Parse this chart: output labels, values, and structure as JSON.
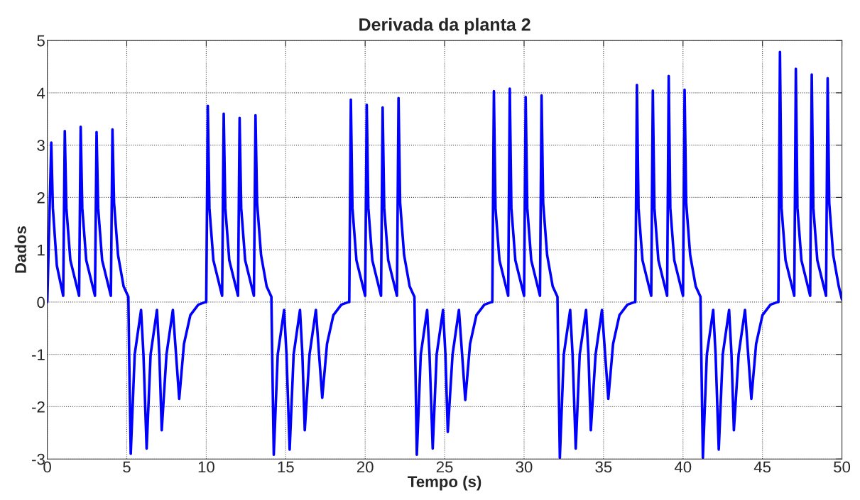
{
  "chart_data": {
    "type": "line",
    "title": "Derivada da planta 2",
    "xlabel": "Tempo (s)",
    "ylabel": "Dados",
    "x": [
      0,
      0.25,
      0.35,
      0.6,
      1.0,
      1.1,
      1.2,
      1.45,
      2.0,
      2.1,
      2.2,
      2.45,
      3.0,
      3.1,
      3.2,
      3.45,
      4.0,
      4.1,
      4.2,
      4.45,
      4.8,
      5.1,
      5.15,
      5.25,
      5.5,
      5.9,
      6.05,
      6.25,
      6.5,
      6.9,
      7.05,
      7.2,
      7.5,
      7.9,
      8.1,
      8.3,
      8.6,
      9.0,
      9.5,
      9.95,
      10,
      10.1,
      10.2,
      10.45,
      11,
      11.1,
      11.2,
      11.45,
      12,
      12.1,
      12.2,
      12.45,
      13,
      13.1,
      13.2,
      13.45,
      13.8,
      14.1,
      14.15,
      14.25,
      14.5,
      14.9,
      15.05,
      15.25,
      15.5,
      15.9,
      16.05,
      16.2,
      16.5,
      16.9,
      17.1,
      17.3,
      17.6,
      18.0,
      18.5,
      18.95,
      19,
      19.1,
      19.2,
      19.45,
      20,
      20.1,
      20.2,
      20.45,
      21,
      21.1,
      21.2,
      21.45,
      22,
      22.1,
      22.2,
      22.45,
      22.8,
      23.1,
      23.15,
      23.25,
      23.5,
      23.9,
      24.05,
      24.25,
      24.5,
      24.9,
      25.05,
      25.2,
      25.5,
      25.9,
      26.1,
      26.3,
      26.6,
      27.0,
      27.5,
      27.95,
      28,
      28.1,
      28.2,
      28.45,
      29,
      29.1,
      29.2,
      29.45,
      30,
      30.1,
      30.2,
      30.45,
      31,
      31.1,
      31.2,
      31.45,
      31.8,
      32.1,
      32.15,
      32.25,
      32.5,
      32.9,
      33.05,
      33.25,
      33.5,
      33.9,
      34.05,
      34.2,
      34.5,
      34.9,
      35.1,
      35.3,
      35.6,
      36.0,
      36.5,
      36.95,
      37,
      37.1,
      37.2,
      37.45,
      38,
      38.1,
      38.2,
      38.45,
      39,
      39.1,
      39.2,
      39.45,
      40,
      40.1,
      40.2,
      40.45,
      40.8,
      41.1,
      41.15,
      41.25,
      41.5,
      41.9,
      42.05,
      42.25,
      42.5,
      42.9,
      43.05,
      43.2,
      43.5,
      43.9,
      44.1,
      44.3,
      44.6,
      45.0,
      45.5,
      45.95,
      46,
      46.1,
      46.2,
      46.45,
      47,
      47.1,
      47.2,
      47.45,
      48,
      48.1,
      48.2,
      48.45,
      49,
      49.1,
      49.2,
      49.45,
      49.8,
      50
    ],
    "series": [
      {
        "color": "#0000ff",
        "values": [
          0,
          3.05,
          1.8,
          0.7,
          0.12,
          3.27,
          1.8,
          0.8,
          0.12,
          3.35,
          1.8,
          0.8,
          0.12,
          3.25,
          1.8,
          0.8,
          0.12,
          3.3,
          1.9,
          0.9,
          0.3,
          0.1,
          -1,
          -2.9,
          -1,
          -0.15,
          -1,
          -2.8,
          -1,
          -0.15,
          -1,
          -2.45,
          -1,
          -0.15,
          -1,
          -1.85,
          -0.8,
          -0.25,
          -0.05,
          0,
          0,
          3.75,
          1.8,
          0.8,
          0.12,
          3.6,
          1.8,
          0.8,
          0.12,
          3.52,
          1.8,
          0.8,
          0.12,
          3.57,
          1.9,
          0.9,
          0.3,
          0.1,
          -1,
          -2.92,
          -1,
          -0.15,
          -1,
          -2.82,
          -1,
          -0.15,
          -1,
          -2.45,
          -1,
          -0.15,
          -1,
          -1.83,
          -0.8,
          -0.25,
          -0.05,
          0,
          0,
          3.87,
          1.8,
          0.8,
          0.12,
          3.77,
          1.8,
          0.8,
          0.12,
          3.72,
          1.8,
          0.8,
          0.12,
          3.9,
          1.9,
          0.9,
          0.3,
          0.1,
          -1,
          -2.92,
          -1,
          -0.15,
          -1,
          -2.8,
          -1,
          -0.15,
          -1,
          -2.48,
          -1,
          -0.15,
          -1,
          -1.87,
          -0.8,
          -0.25,
          -0.05,
          0,
          0,
          4.03,
          1.8,
          0.8,
          0.12,
          4.08,
          1.8,
          0.8,
          0.12,
          3.92,
          1.8,
          0.8,
          0.12,
          3.95,
          1.9,
          0.9,
          0.3,
          0.1,
          -1,
          -2.98,
          -1,
          -0.15,
          -1,
          -2.8,
          -1,
          -0.15,
          -1,
          -2.45,
          -1,
          -0.15,
          -1,
          -1.85,
          -0.8,
          -0.25,
          -0.05,
          0,
          0,
          4.15,
          1.8,
          0.8,
          0.12,
          4.04,
          1.8,
          0.8,
          0.12,
          4.32,
          1.8,
          0.8,
          0.12,
          4.06,
          1.9,
          0.9,
          0.3,
          0.1,
          -1,
          -2.98,
          -1,
          -0.15,
          -1,
          -2.82,
          -1,
          -0.15,
          -1,
          -2.45,
          -1,
          -0.15,
          -1,
          -1.85,
          -0.8,
          -0.25,
          -0.05,
          0,
          0,
          4.78,
          1.8,
          0.8,
          0.12,
          4.46,
          1.8,
          0.8,
          0.12,
          4.35,
          1.8,
          0.8,
          0.12,
          4.28,
          1.9,
          0.9,
          0.3,
          0.05
        ]
      }
    ],
    "xlim": [
      0,
      50
    ],
    "xticks": [
      0,
      5,
      10,
      15,
      20,
      25,
      30,
      35,
      40,
      45,
      50
    ],
    "ylim": [
      -3,
      5
    ],
    "yticks": [
      -3,
      -2,
      -1,
      0,
      1,
      2,
      3,
      4,
      5
    ],
    "grid": true,
    "legend": false,
    "line_style": "solid",
    "marker": "none"
  }
}
